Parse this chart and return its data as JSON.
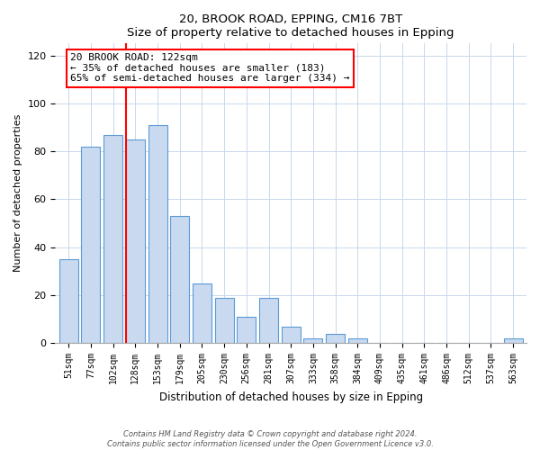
{
  "title": "20, BROOK ROAD, EPPING, CM16 7BT",
  "subtitle": "Size of property relative to detached houses in Epping",
  "xlabel": "Distribution of detached houses by size in Epping",
  "ylabel": "Number of detached properties",
  "bar_labels": [
    "51sqm",
    "77sqm",
    "102sqm",
    "128sqm",
    "153sqm",
    "179sqm",
    "205sqm",
    "230sqm",
    "256sqm",
    "281sqm",
    "307sqm",
    "333sqm",
    "358sqm",
    "384sqm",
    "409sqm",
    "435sqm",
    "461sqm",
    "486sqm",
    "512sqm",
    "537sqm",
    "563sqm"
  ],
  "bar_values": [
    35,
    82,
    87,
    85,
    91,
    53,
    25,
    19,
    11,
    19,
    7,
    2,
    4,
    2,
    0,
    0,
    0,
    0,
    0,
    0,
    2
  ],
  "bar_color": "#c9d9f0",
  "bar_edge_color": "#5b9bd5",
  "reference_line_index": 3,
  "annotation_title": "20 BROOK ROAD: 122sqm",
  "annotation_line1": "← 35% of detached houses are smaller (183)",
  "annotation_line2": "65% of semi-detached houses are larger (334) →",
  "ylim": [
    0,
    125
  ],
  "yticks": [
    0,
    20,
    40,
    60,
    80,
    100,
    120
  ],
  "footnote1": "Contains HM Land Registry data © Crown copyright and database right 2024.",
  "footnote2": "Contains public sector information licensed under the Open Government Licence v3.0."
}
